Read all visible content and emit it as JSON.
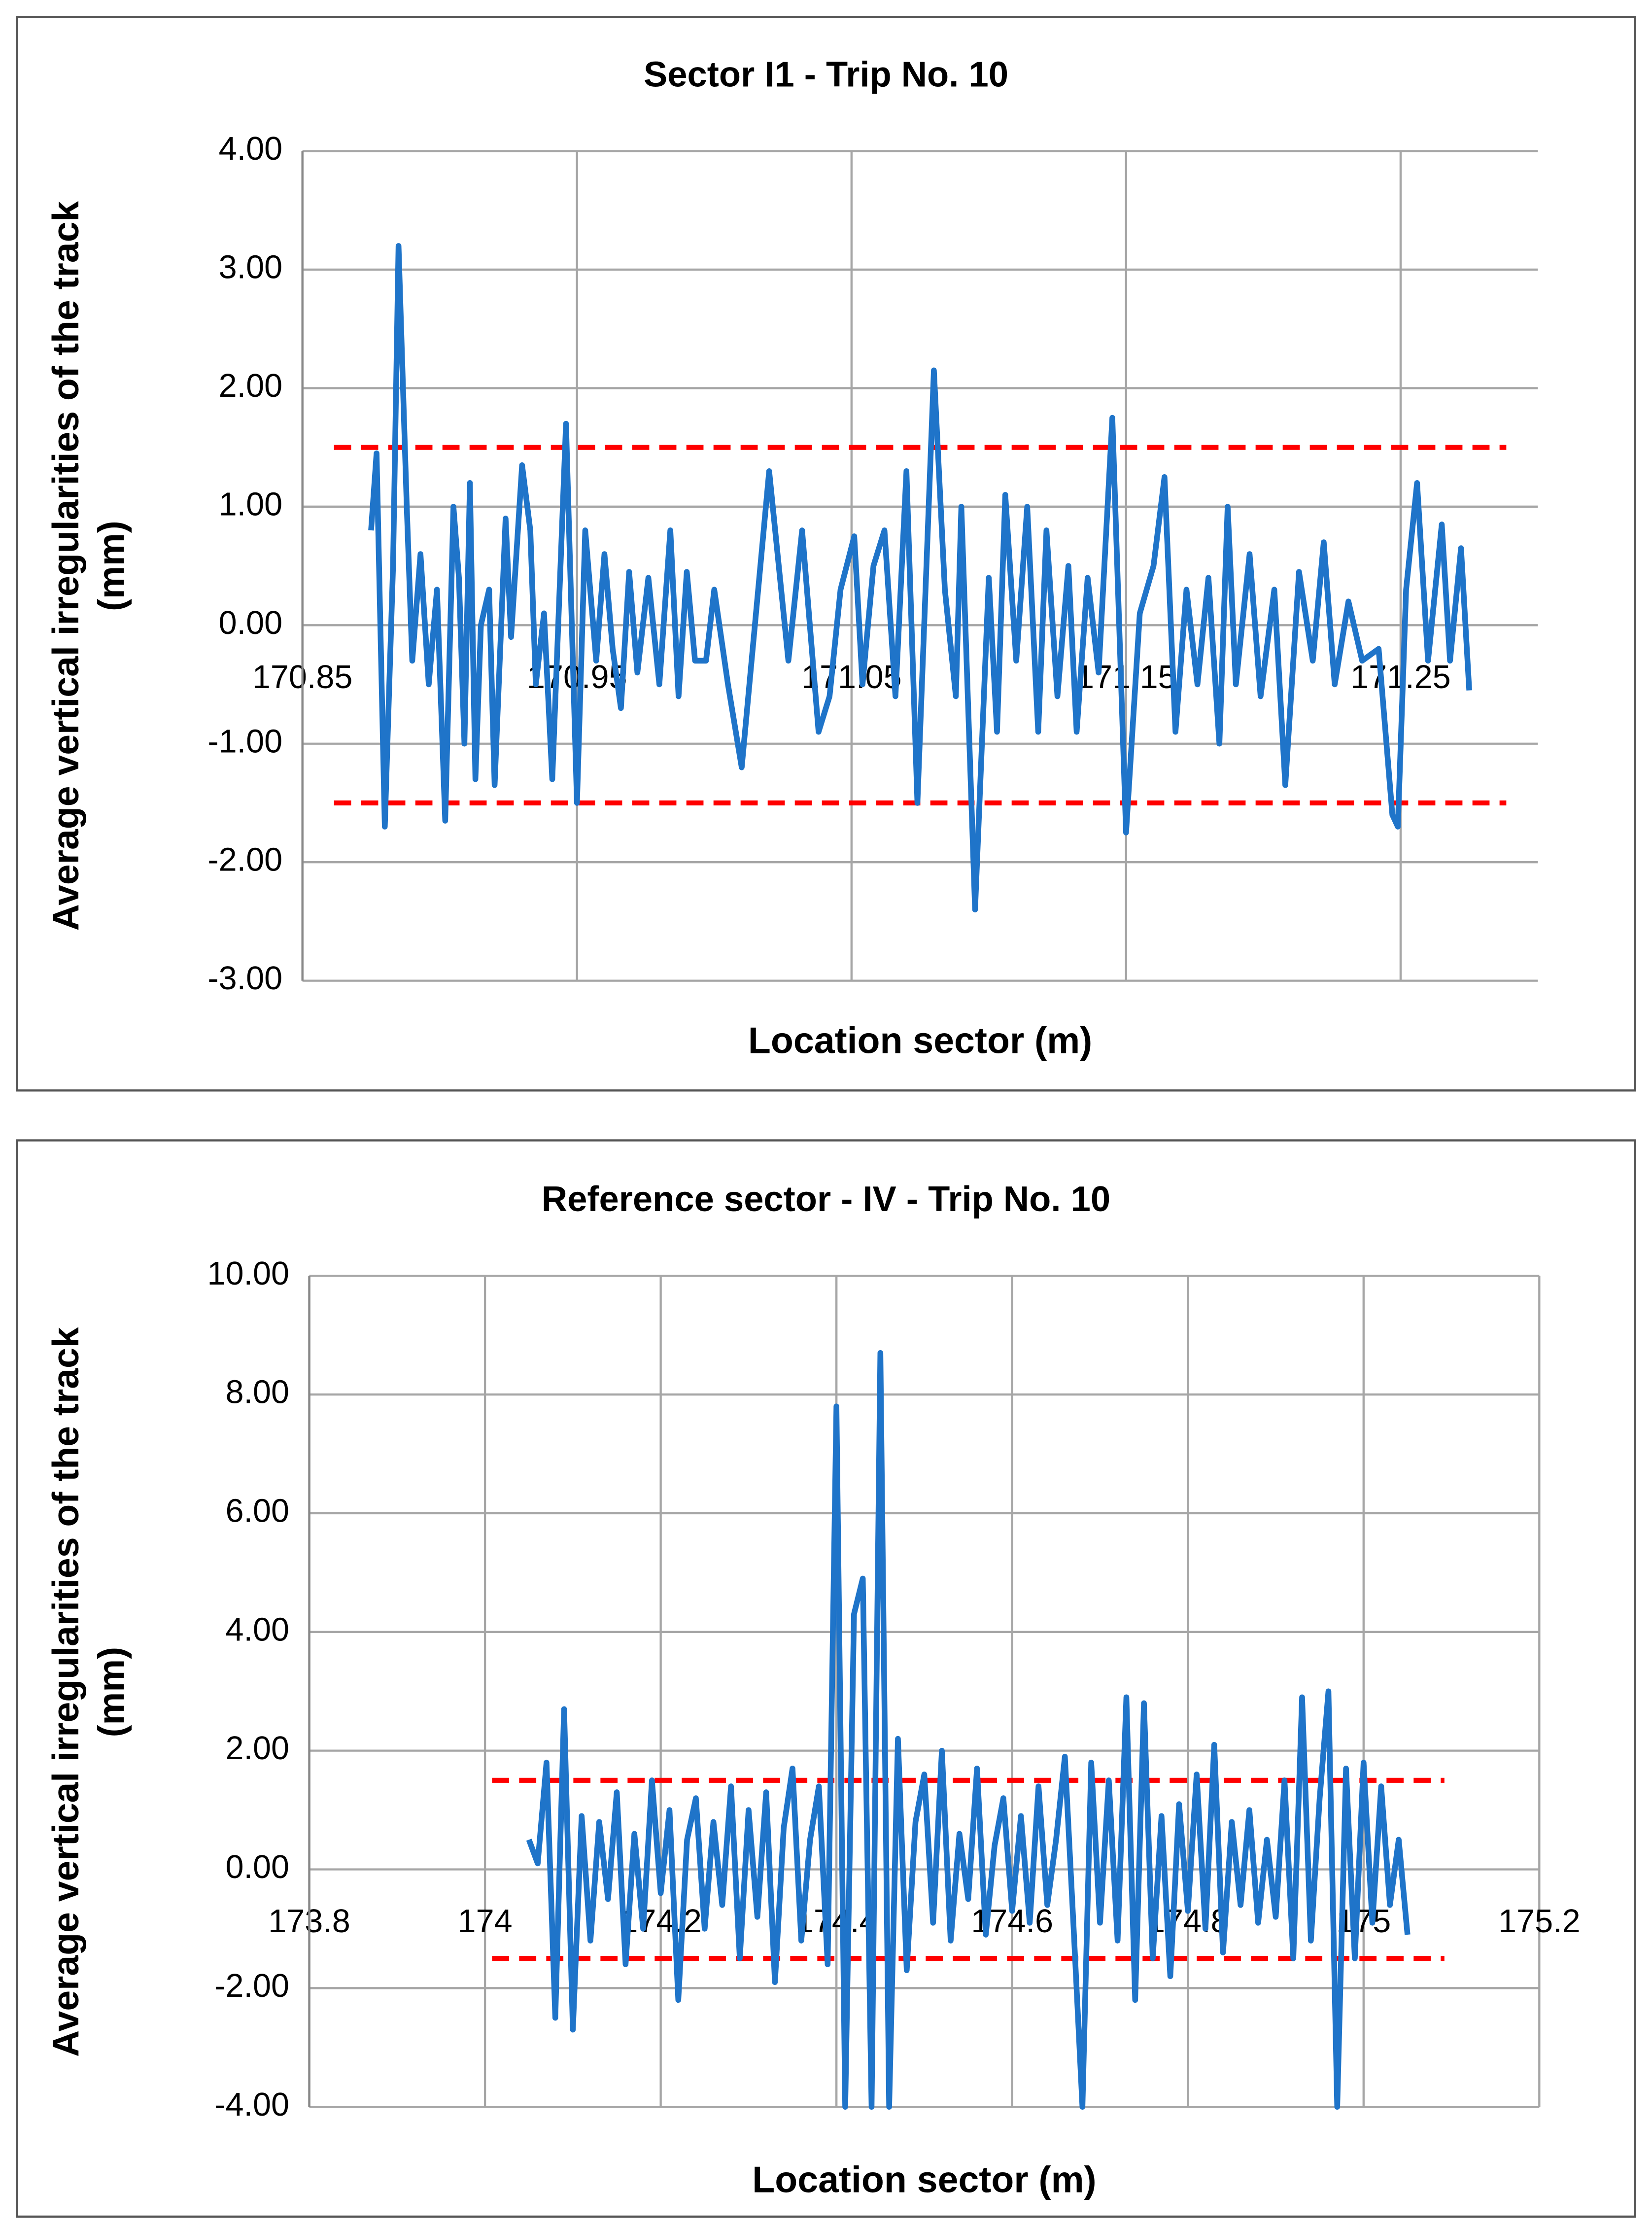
{
  "chart_data": [
    {
      "type": "line",
      "title": "Sector I1 - Trip No. 10",
      "x_label": "Location sector (m)",
      "y_label": [
        "Average vertical irregularities of the track",
        "(mm)"
      ],
      "xlim": [
        170.85,
        171.3
      ],
      "xticks": [
        170.85,
        170.95,
        171.05,
        171.15,
        171.25
      ],
      "ylim": [
        -3,
        4
      ],
      "yticks": [
        {
          "value": -3,
          "label": "-3.00"
        },
        {
          "value": -2,
          "label": "-2.00"
        },
        {
          "value": -1,
          "label": "-1.00"
        },
        {
          "value": 0,
          "label": "0.00"
        },
        {
          "value": 1,
          "label": "1.00"
        },
        {
          "value": 2,
          "label": "2.00"
        },
        {
          "value": 3,
          "label": "3.00"
        },
        {
          "value": 4,
          "label": "4.00"
        }
      ],
      "grid": true,
      "reference_lines": [
        {
          "value": 1.5,
          "color": "#ff0000"
        },
        {
          "value": -1.5,
          "color": "#ff0000"
        }
      ],
      "series": [
        {
          "color": "#1f74c9",
          "x": [
            170.875,
            170.877,
            170.88,
            170.883,
            170.885,
            170.888,
            170.89,
            170.893,
            170.896,
            170.899,
            170.902,
            170.905,
            170.907,
            170.909,
            170.911,
            170.913,
            170.915,
            170.918,
            170.92,
            170.924,
            170.926,
            170.93,
            170.933,
            170.935,
            170.938,
            170.941,
            170.946,
            170.95,
            170.953,
            170.957,
            170.96,
            170.963,
            170.966,
            170.969,
            170.972,
            170.976,
            170.98,
            170.984,
            170.987,
            170.99,
            170.993,
            170.997,
            171.0,
            171.005,
            171.01,
            171.02,
            171.027,
            171.032,
            171.038,
            171.042,
            171.046,
            171.051,
            171.054,
            171.058,
            171.062,
            171.066,
            171.07,
            171.074,
            171.08,
            171.084,
            171.088,
            171.09,
            171.095,
            171.1,
            171.103,
            171.106,
            171.11,
            171.114,
            171.118,
            171.121,
            171.125,
            171.129,
            171.132,
            171.136,
            171.14,
            171.145,
            171.15,
            171.155,
            171.16,
            171.164,
            171.168,
            171.172,
            171.176,
            171.18,
            171.184,
            171.187,
            171.19,
            171.195,
            171.199,
            171.204,
            171.208,
            171.213,
            171.218,
            171.222,
            171.226,
            171.231,
            171.236,
            171.242,
            171.247,
            171.249,
            171.252,
            171.256,
            171.26,
            171.265,
            171.268,
            171.272,
            171.275
          ],
          "values": [
            0.8,
            1.45,
            -1.7,
            0.5,
            3.2,
            1.0,
            -0.3,
            0.6,
            -0.5,
            0.3,
            -1.65,
            1.0,
            0.4,
            -1.0,
            1.2,
            -1.3,
            0.0,
            0.3,
            -1.35,
            0.9,
            -0.1,
            1.35,
            0.8,
            -0.5,
            0.1,
            -1.3,
            1.7,
            -1.5,
            0.8,
            -0.3,
            0.6,
            -0.2,
            -0.7,
            0.45,
            -0.4,
            0.4,
            -0.5,
            0.8,
            -0.6,
            0.45,
            -0.3,
            -0.3,
            0.3,
            -0.5,
            -1.2,
            1.3,
            -0.3,
            0.8,
            -0.9,
            -0.6,
            0.3,
            0.75,
            -0.5,
            0.5,
            0.8,
            -0.6,
            1.3,
            -1.5,
            2.15,
            0.3,
            -0.6,
            1.0,
            -2.4,
            0.4,
            -0.9,
            1.1,
            -0.3,
            1.0,
            -0.9,
            0.8,
            -0.6,
            0.5,
            -0.9,
            0.4,
            -0.4,
            1.75,
            -1.75,
            0.1,
            0.5,
            1.25,
            -0.9,
            0.3,
            -0.5,
            0.4,
            -1.0,
            1.0,
            -0.5,
            0.6,
            -0.6,
            0.3,
            -1.35,
            0.45,
            -0.3,
            0.7,
            -0.5,
            0.2,
            -0.3,
            -0.2,
            -1.6,
            -1.7,
            0.3,
            1.2,
            -0.3,
            0.85,
            -0.3,
            0.65,
            -0.55
          ]
        }
      ]
    },
    {
      "type": "line",
      "title": "Reference sector - IV - Trip No. 10",
      "x_label": "Location sector (m)",
      "y_label": [
        "Average vertical irregularities of the track",
        "(mm)"
      ],
      "xlim": [
        173.8,
        175.2
      ],
      "xticks": [
        173.8,
        174,
        174.2,
        174.4,
        174.6,
        174.8,
        175,
        175.2
      ],
      "ylim": [
        -4,
        10
      ],
      "yticks": [
        {
          "value": -4,
          "label": "-4.00"
        },
        {
          "value": -2,
          "label": "-2.00"
        },
        {
          "value": 0,
          "label": "0.00"
        },
        {
          "value": 2,
          "label": "2.00"
        },
        {
          "value": 4,
          "label": "4.00"
        },
        {
          "value": 6,
          "label": "6.00"
        },
        {
          "value": 8,
          "label": "8.00"
        },
        {
          "value": 10,
          "label": "10.00"
        }
      ],
      "grid": true,
      "reference_lines": [
        {
          "value": 1.5,
          "color": "#ff0000"
        },
        {
          "value": -1.5,
          "color": "#ff0000"
        }
      ],
      "series": [
        {
          "color": "#1f74c9",
          "x": [
            174.05,
            174.06,
            174.07,
            174.08,
            174.09,
            174.1,
            174.11,
            174.12,
            174.13,
            174.14,
            174.15,
            174.16,
            174.17,
            174.18,
            174.19,
            174.2,
            174.21,
            174.22,
            174.23,
            174.24,
            174.25,
            174.26,
            174.27,
            174.28,
            174.29,
            174.3,
            174.31,
            174.32,
            174.33,
            174.34,
            174.35,
            174.36,
            174.37,
            174.38,
            174.39,
            174.4,
            174.41,
            174.42,
            174.43,
            174.44,
            174.45,
            174.46,
            174.47,
            174.48,
            174.49,
            174.5,
            174.51,
            174.52,
            174.53,
            174.54,
            174.55,
            174.56,
            174.57,
            174.58,
            174.59,
            174.6,
            174.61,
            174.62,
            174.63,
            174.64,
            174.65,
            174.66,
            174.67,
            174.68,
            174.69,
            174.7,
            174.71,
            174.72,
            174.73,
            174.74,
            174.75,
            174.76,
            174.77,
            174.78,
            174.79,
            174.8,
            174.81,
            174.82,
            174.83,
            174.84,
            174.85,
            174.86,
            174.87,
            174.88,
            174.89,
            174.9,
            174.91,
            174.92,
            174.93,
            174.94,
            174.95,
            174.96,
            174.97,
            174.98,
            174.99,
            175.0,
            175.01,
            175.02,
            175.03,
            175.04,
            175.05
          ],
          "values": [
            0.5,
            0.1,
            1.8,
            -2.5,
            2.7,
            -2.7,
            0.9,
            -1.2,
            0.8,
            -0.5,
            1.3,
            -1.6,
            0.6,
            -1.0,
            1.5,
            -0.4,
            1.0,
            -2.2,
            0.5,
            1.2,
            -1.0,
            0.8,
            -0.6,
            1.4,
            -1.5,
            1.0,
            -0.8,
            1.3,
            -1.9,
            0.7,
            1.7,
            -1.2,
            0.5,
            1.4,
            -1.6,
            7.8,
            -4.0,
            4.3,
            4.9,
            -4.0,
            8.7,
            -4.0,
            2.2,
            -1.7,
            0.8,
            1.6,
            -0.9,
            2.0,
            -1.2,
            0.6,
            -0.5,
            1.7,
            -1.1,
            0.4,
            1.2,
            -0.7,
            0.9,
            -0.9,
            1.4,
            -0.6,
            0.5,
            1.9,
            -1.0,
            -4.0,
            1.8,
            -0.9,
            1.5,
            -1.2,
            2.9,
            -2.2,
            2.8,
            -1.5,
            0.9,
            -1.8,
            1.1,
            -0.7,
            1.6,
            -1.0,
            2.1,
            -1.4,
            0.8,
            -0.6,
            1.0,
            -0.9,
            0.5,
            -0.8,
            1.5,
            -1.5,
            2.9,
            -1.2,
            1.2,
            3.0,
            -4.0,
            1.7,
            -1.5,
            1.8,
            -0.9,
            1.4,
            -0.6,
            0.5,
            -1.1
          ]
        }
      ]
    }
  ]
}
